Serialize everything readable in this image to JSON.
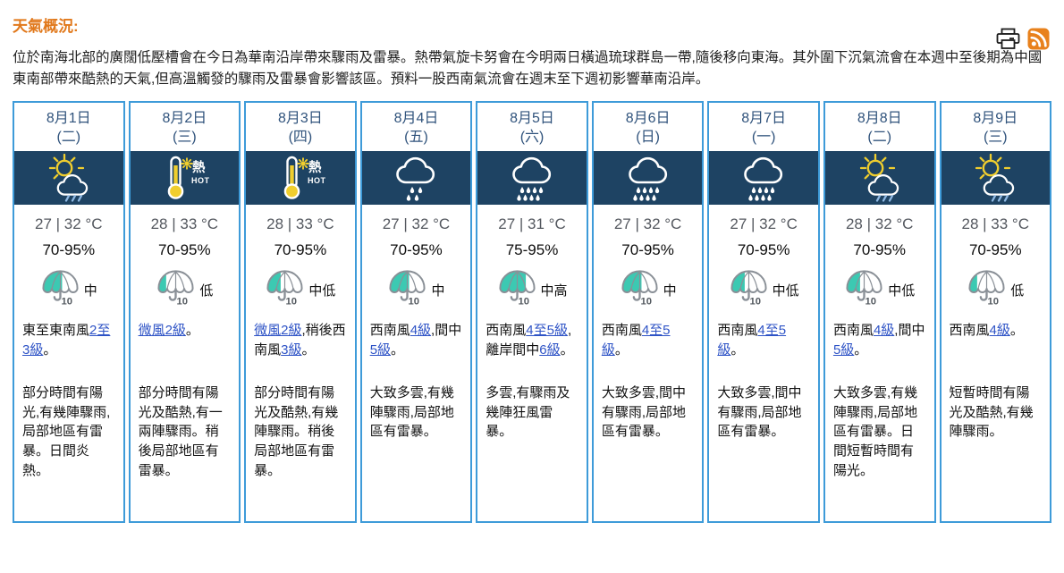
{
  "header": {
    "title": "天氣概況:",
    "icons": {
      "print": "printer-icon",
      "rss": "rss-icon"
    }
  },
  "summary": {
    "text": "位於南海北部的廣闊低壓槽會在今日為華南沿岸帶來驟雨及雷暴。熱帶氣旋卡努會在今明兩日橫過琉球群島一帶,隨後移向東海。其外圍下沉氣流會在本週中至後期為中國東南部帶來酷熱的天氣,但高溫觸發的驟雨及雷暴會影響該區。預料一股西南氣流會在週末至下週初影響華南沿岸。"
  },
  "colors": {
    "accent_blue": "#3e9bd9",
    "band_navy": "#1e4363",
    "title_orange": "#e1791c",
    "psr_teal": "#3cc9b2",
    "link_blue": "#2e53c6",
    "sun_yellow": "#f0ce2e",
    "rain_blue": "#8fb9e4",
    "rss_orange": "#e8811c"
  },
  "icon_labels": {
    "very_hot_zh": "熱",
    "very_hot_en": "HOT",
    "umbrella_number": "10"
  },
  "forecast": {
    "days": [
      {
        "date": "8月1日",
        "weekday": "(二)",
        "icon": "sun-shower",
        "temp": "27 | 32 °C",
        "humidity": "70-95%",
        "psr_level": "中",
        "psr_fill": 0.55,
        "wind": [
          {
            "text": "東至東南風"
          },
          {
            "text": "2至3級",
            "link": true
          },
          {
            "text": "。"
          }
        ],
        "description": "部分時間有陽光,有幾陣驟雨,局部地區有雷暴。日間炎熱。"
      },
      {
        "date": "8月2日",
        "weekday": "(三)",
        "icon": "very-hot",
        "temp": "28 | 33 °C",
        "humidity": "70-95%",
        "psr_level": "低",
        "psr_fill": 0.22,
        "wind": [
          {
            "text": "微風2級",
            "link": true
          },
          {
            "text": "。"
          }
        ],
        "description": "部分時間有陽光及酷熱,有一兩陣驟雨。稍後局部地區有雷暴。"
      },
      {
        "date": "8月3日",
        "weekday": "(四)",
        "icon": "very-hot",
        "temp": "28 | 33 °C",
        "humidity": "70-95%",
        "psr_level": "中低",
        "psr_fill": 0.38,
        "wind": [
          {
            "text": "微風2級",
            "link": true
          },
          {
            "text": ",稍後西南風"
          },
          {
            "text": "3級",
            "link": true
          },
          {
            "text": "。"
          }
        ],
        "description": "部分時間有陽光及酷熱,有幾陣驟雨。稍後局部地區有雷暴。"
      },
      {
        "date": "8月4日",
        "weekday": "(五)",
        "icon": "light-rain",
        "temp": "27 | 32 °C",
        "humidity": "70-95%",
        "psr_level": "中",
        "psr_fill": 0.55,
        "wind": [
          {
            "text": "西南風"
          },
          {
            "text": "4級",
            "link": true
          },
          {
            "text": ",間中"
          },
          {
            "text": "5級",
            "link": true
          },
          {
            "text": "。"
          }
        ],
        "description": "大致多雲,有幾陣驟雨,局部地區有雷暴。"
      },
      {
        "date": "8月5日",
        "weekday": "(六)",
        "icon": "rain",
        "temp": "27 | 31 °C",
        "humidity": "75-95%",
        "psr_level": "中高",
        "psr_fill": 0.75,
        "wind": [
          {
            "text": "西南風"
          },
          {
            "text": "4至5級",
            "link": true
          },
          {
            "text": ",離岸間中"
          },
          {
            "text": "6級",
            "link": true
          },
          {
            "text": "。"
          }
        ],
        "description": "多雲,有驟雨及幾陣狂風雷暴。"
      },
      {
        "date": "8月6日",
        "weekday": "(日)",
        "icon": "rain",
        "temp": "27 | 32 °C",
        "humidity": "70-95%",
        "psr_level": "中",
        "psr_fill": 0.55,
        "wind": [
          {
            "text": "西南風"
          },
          {
            "text": "4至5級",
            "link": true
          },
          {
            "text": "。"
          }
        ],
        "description": "大致多雲,間中有驟雨,局部地區有雷暴。"
      },
      {
        "date": "8月7日",
        "weekday": "(一)",
        "icon": "rain",
        "temp": "27 | 32 °C",
        "humidity": "70-95%",
        "psr_level": "中低",
        "psr_fill": 0.38,
        "wind": [
          {
            "text": "西南風"
          },
          {
            "text": "4至5級",
            "link": true
          },
          {
            "text": "。"
          }
        ],
        "description": "大致多雲,間中有驟雨,局部地區有雷暴。"
      },
      {
        "date": "8月8日",
        "weekday": "(二)",
        "icon": "sun-shower",
        "temp": "28 | 32 °C",
        "humidity": "70-95%",
        "psr_level": "中低",
        "psr_fill": 0.38,
        "wind": [
          {
            "text": "西南風"
          },
          {
            "text": "4級",
            "link": true
          },
          {
            "text": ",間中"
          },
          {
            "text": "5級",
            "link": true
          },
          {
            "text": "。"
          }
        ],
        "description": "大致多雲,有幾陣驟雨,局部地區有雷暴。日間短暫時間有陽光。"
      },
      {
        "date": "8月9日",
        "weekday": "(三)",
        "icon": "sun-shower",
        "temp": "28 | 33 °C",
        "humidity": "70-95%",
        "psr_level": "低",
        "psr_fill": 0.22,
        "wind": [
          {
            "text": "西南風"
          },
          {
            "text": "4級",
            "link": true
          },
          {
            "text": "。"
          }
        ],
        "description": "短暫時間有陽光及酷熱,有幾陣驟雨。"
      }
    ]
  }
}
